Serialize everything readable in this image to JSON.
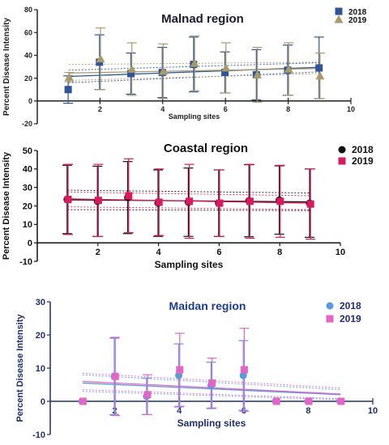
{
  "chart_data": [
    {
      "type": "scatter",
      "title": "Malnad region",
      "xlabel": "Sampling sites",
      "ylabel": "Percent Disease Intensity",
      "xlim": [
        0,
        10
      ],
      "ylim": [
        -20,
        80
      ],
      "xticks": [
        2,
        4,
        6,
        8,
        10
      ],
      "yticks": [
        -20,
        0,
        20,
        40,
        60,
        80
      ],
      "xtick_labels": [
        "2",
        "4",
        "6",
        "8",
        "10"
      ],
      "ytick_labels": [
        "-20",
        "0",
        "20",
        "40",
        "60",
        "80"
      ],
      "colors": {
        "title": "#1a1a2e",
        "axis": "#222222"
      },
      "legend": {
        "placement": "top-right"
      },
      "series": [
        {
          "name": "2018",
          "marker": "square",
          "color": "#2f5597",
          "x": [
            1,
            2,
            3,
            4,
            5,
            6,
            7,
            8,
            9
          ],
          "y": [
            10,
            34,
            24,
            25,
            32,
            25,
            23,
            27,
            29
          ],
          "err": [
            12,
            24,
            18,
            22,
            24,
            18,
            22,
            22,
            27
          ]
        },
        {
          "name": "2019",
          "marker": "triangle",
          "color": "#a89a6a",
          "x": [
            1,
            2,
            3,
            4,
            5,
            6,
            7,
            8,
            9
          ],
          "y": [
            21,
            37,
            28,
            26,
            33,
            29,
            23,
            28,
            22
          ],
          "err": [
            4,
            27,
            23,
            24,
            24,
            22,
            24,
            23,
            20
          ]
        }
      ],
      "fits": [
        {
          "color": "#2f5597",
          "y_start": 21.5,
          "y_end": 29.5,
          "lo_start": 16,
          "lo_end": 25.5,
          "hi_start": 27,
          "hi_end": 33.5
        },
        {
          "color": "#a89a6a",
          "y_start": 24.5,
          "y_end": 28.5,
          "lo_start": 18,
          "lo_end": 24,
          "hi_start": 32,
          "hi_end": 34
        }
      ]
    },
    {
      "type": "scatter",
      "title": "Coastal region",
      "xlabel": "Sampling sites",
      "ylabel": "Percent Disease Intensity",
      "xlim": [
        0,
        10
      ],
      "ylim": [
        -10,
        50
      ],
      "xticks": [
        2,
        4,
        6,
        8,
        10
      ],
      "yticks": [
        -10,
        0,
        10,
        20,
        30,
        40,
        50
      ],
      "xtick_labels": [
        "2",
        "4",
        "6",
        "8",
        "10"
      ],
      "ytick_labels": [
        "-10",
        "0",
        "10",
        "20",
        "30",
        "40",
        "50"
      ],
      "colors": {
        "title": "#111111",
        "axis": "#111111"
      },
      "legend": {
        "placement": "top-right"
      },
      "series": [
        {
          "name": "2018",
          "marker": "circle",
          "color": "#111111",
          "x": [
            1,
            2,
            3,
            4,
            5,
            6,
            7,
            8,
            9
          ],
          "y": [
            23.5,
            22.5,
            24.5,
            21.5,
            22,
            21.5,
            22.8,
            23.2,
            21.5
          ],
          "err": [
            18.5,
            19,
            19.5,
            18,
            18.5,
            18,
            19.5,
            18.5,
            18.5
          ]
        },
        {
          "name": "2019",
          "marker": "square",
          "color": "#d81b60",
          "x": [
            1,
            2,
            3,
            4,
            5,
            6,
            7,
            8,
            9
          ],
          "y": [
            23.5,
            23,
            25.5,
            22,
            22.5,
            21.5,
            22.5,
            22.5,
            21
          ],
          "err": [
            19,
            19.5,
            20,
            18,
            20,
            18,
            20,
            19.5,
            19
          ]
        }
      ],
      "fits": [
        {
          "color": "#111111",
          "y_start": 23.3,
          "y_end": 22.2,
          "lo_start": 18,
          "lo_end": 17.5,
          "hi_start": 28.5,
          "hi_end": 27
        },
        {
          "color": "#d81b60",
          "y_start": 23.8,
          "y_end": 21.5,
          "lo_start": 19.5,
          "lo_end": 18,
          "hi_start": 27.5,
          "hi_end": 25.5
        }
      ]
    },
    {
      "type": "scatter",
      "title": "Maidan region",
      "xlabel": "Sampling sites",
      "ylabel": "Percent Disease Intensity",
      "xlim": [
        0,
        10
      ],
      "ylim": [
        -10,
        30
      ],
      "xticks": [
        2,
        4,
        6,
        8,
        10
      ],
      "yticks": [
        -10,
        0,
        10,
        20,
        30
      ],
      "xtick_labels": [
        "2",
        "4",
        "6",
        "8",
        "10"
      ],
      "ytick_labels": [
        "-10",
        "0",
        "10",
        "20",
        "30"
      ],
      "colors": {
        "title": "#1f3c88",
        "axis": "#1f2f6b"
      },
      "legend": {
        "placement": "top-right"
      },
      "series": [
        {
          "name": "2018",
          "marker": "circle",
          "color": "#5b9bd5",
          "x": [
            1,
            2,
            3,
            4,
            5,
            6,
            7,
            8,
            9
          ],
          "y": [
            0,
            7.5,
            1.5,
            7.8,
            4.8,
            7.8,
            0,
            0,
            0
          ],
          "err": [
            0,
            11.5,
            5.5,
            9.5,
            7,
            10.5,
            0,
            0,
            0
          ]
        },
        {
          "name": "2019",
          "marker": "square",
          "color": "#e066c8",
          "x": [
            1,
            2,
            3,
            4,
            5,
            6,
            7,
            8,
            9
          ],
          "y": [
            0,
            7.5,
            2,
            9.5,
            5.5,
            9.5,
            0,
            0,
            0
          ],
          "err": [
            0,
            11.8,
            6,
            11,
            7.5,
            12.5,
            0,
            0,
            0
          ]
        }
      ],
      "fits": [
        {
          "color": "#5b9bd5",
          "y_start": 5.5,
          "y_end": 2,
          "lo_start": 3,
          "lo_end": 0.5,
          "hi_start": 8,
          "hi_end": 3.5
        },
        {
          "color": "#e066c8",
          "y_start": 6,
          "y_end": 2.2,
          "lo_start": 3.5,
          "lo_end": 0.8,
          "hi_start": 8.5,
          "hi_end": 4
        }
      ]
    }
  ]
}
